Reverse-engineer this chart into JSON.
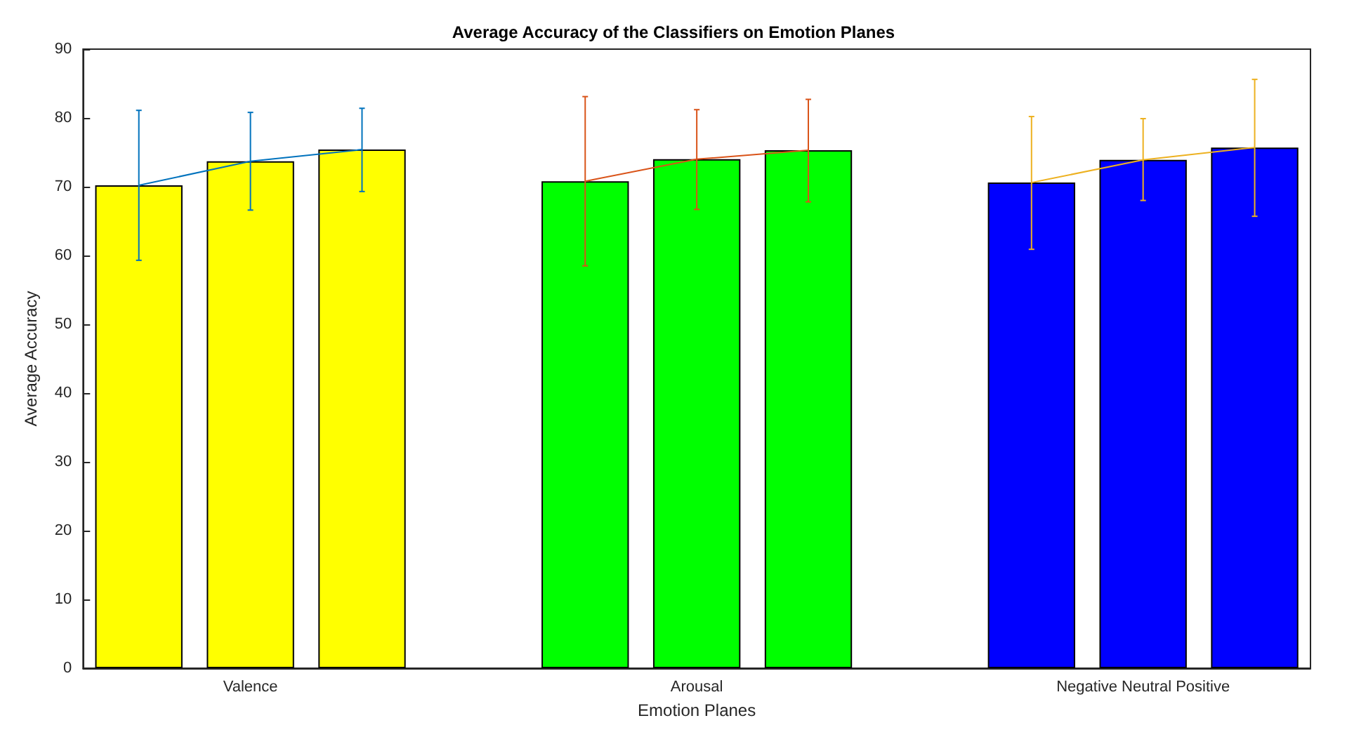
{
  "chart_data": {
    "type": "bar",
    "title": "Average Accuracy of the Classifiers on Emotion Planes",
    "xlabel": "Emotion Planes",
    "ylabel": "Average Accuracy",
    "categories": [
      null,
      "Valence",
      null,
      null,
      null,
      "Arousal",
      null,
      null,
      null,
      "Negative Neutral Positive",
      null
    ],
    "ylim": [
      0,
      90
    ],
    "yticks": [
      0,
      10,
      20,
      30,
      40,
      50,
      60,
      70,
      80,
      90
    ],
    "grid": false,
    "marker": "none",
    "series": [
      {
        "values": [
          70.2,
          73.7,
          75.4,
          null,
          70.8,
          74.0,
          75.3,
          null,
          70.6,
          73.9,
          75.7
        ],
        "colors": [
          "#ffff00",
          "#ffff00",
          "#ffff00",
          null,
          "#00ff00",
          "#00ff00",
          "#00ff00",
          null,
          "#0000ff",
          "#0000ff",
          "#0000ff"
        ]
      },
      {
        "type": "line",
        "values": [
          70.2,
          73.7,
          75.4,
          null,
          null,
          null,
          null,
          null,
          null,
          null,
          null
        ],
        "errors": [
          [
            59.3,
            81.1
          ],
          [
            66.6,
            80.8
          ],
          [
            69.3,
            81.4
          ],
          null,
          null,
          null,
          null,
          null,
          null,
          null,
          null
        ],
        "color": "#0072bd"
      },
      {
        "type": "line",
        "values": [
          null,
          null,
          null,
          null,
          70.8,
          74.0,
          75.3,
          null,
          null,
          null,
          null
        ],
        "errors": [
          null,
          null,
          null,
          null,
          [
            58.5,
            83.1
          ],
          [
            66.7,
            81.2
          ],
          [
            67.8,
            82.7
          ],
          null,
          null,
          null,
          null
        ],
        "color": "#d95319"
      },
      {
        "type": "line",
        "values": [
          null,
          null,
          null,
          null,
          null,
          null,
          null,
          null,
          70.6,
          73.9,
          75.7
        ],
        "errors": [
          null,
          null,
          null,
          null,
          null,
          null,
          null,
          null,
          [
            60.9,
            80.2
          ],
          [
            68.0,
            79.9
          ],
          [
            65.7,
            85.6
          ]
        ],
        "color": "#edb120"
      }
    ]
  }
}
